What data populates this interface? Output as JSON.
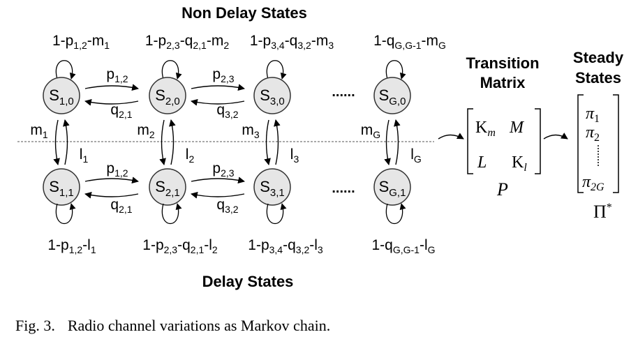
{
  "titles": {
    "non_delay": "Non Delay States",
    "delay": "Delay States",
    "transition_matrix_line1": "Transition",
    "transition_matrix_line2": "Matrix",
    "steady_line1": "Steady",
    "steady_line2": "States"
  },
  "states_top": [
    {
      "base": "S",
      "sub": "1,0"
    },
    {
      "base": "S",
      "sub": "2,0"
    },
    {
      "base": "S",
      "sub": "3,0"
    },
    {
      "base": "S",
      "sub": "G,0"
    }
  ],
  "states_bottom": [
    {
      "base": "S",
      "sub": "1,1"
    },
    {
      "base": "S",
      "sub": "2,1"
    },
    {
      "base": "S",
      "sub": "3,1"
    },
    {
      "base": "S",
      "sub": "G,1"
    }
  ],
  "ellipsis": "......",
  "matrix": {
    "k_m": "K",
    "k_m_sub": "m",
    "m": "M",
    "l": "L",
    "k_l": "K",
    "k_l_sub": "l",
    "p": "P"
  },
  "steady": {
    "pi": "π",
    "sub1": "1",
    "sub2": "2",
    "sub3": "2G",
    "pistar": "Π",
    "star": "*"
  },
  "caption": {
    "figno": "Fig. 3.",
    "text": "Radio channel variations as Markov chain."
  }
}
